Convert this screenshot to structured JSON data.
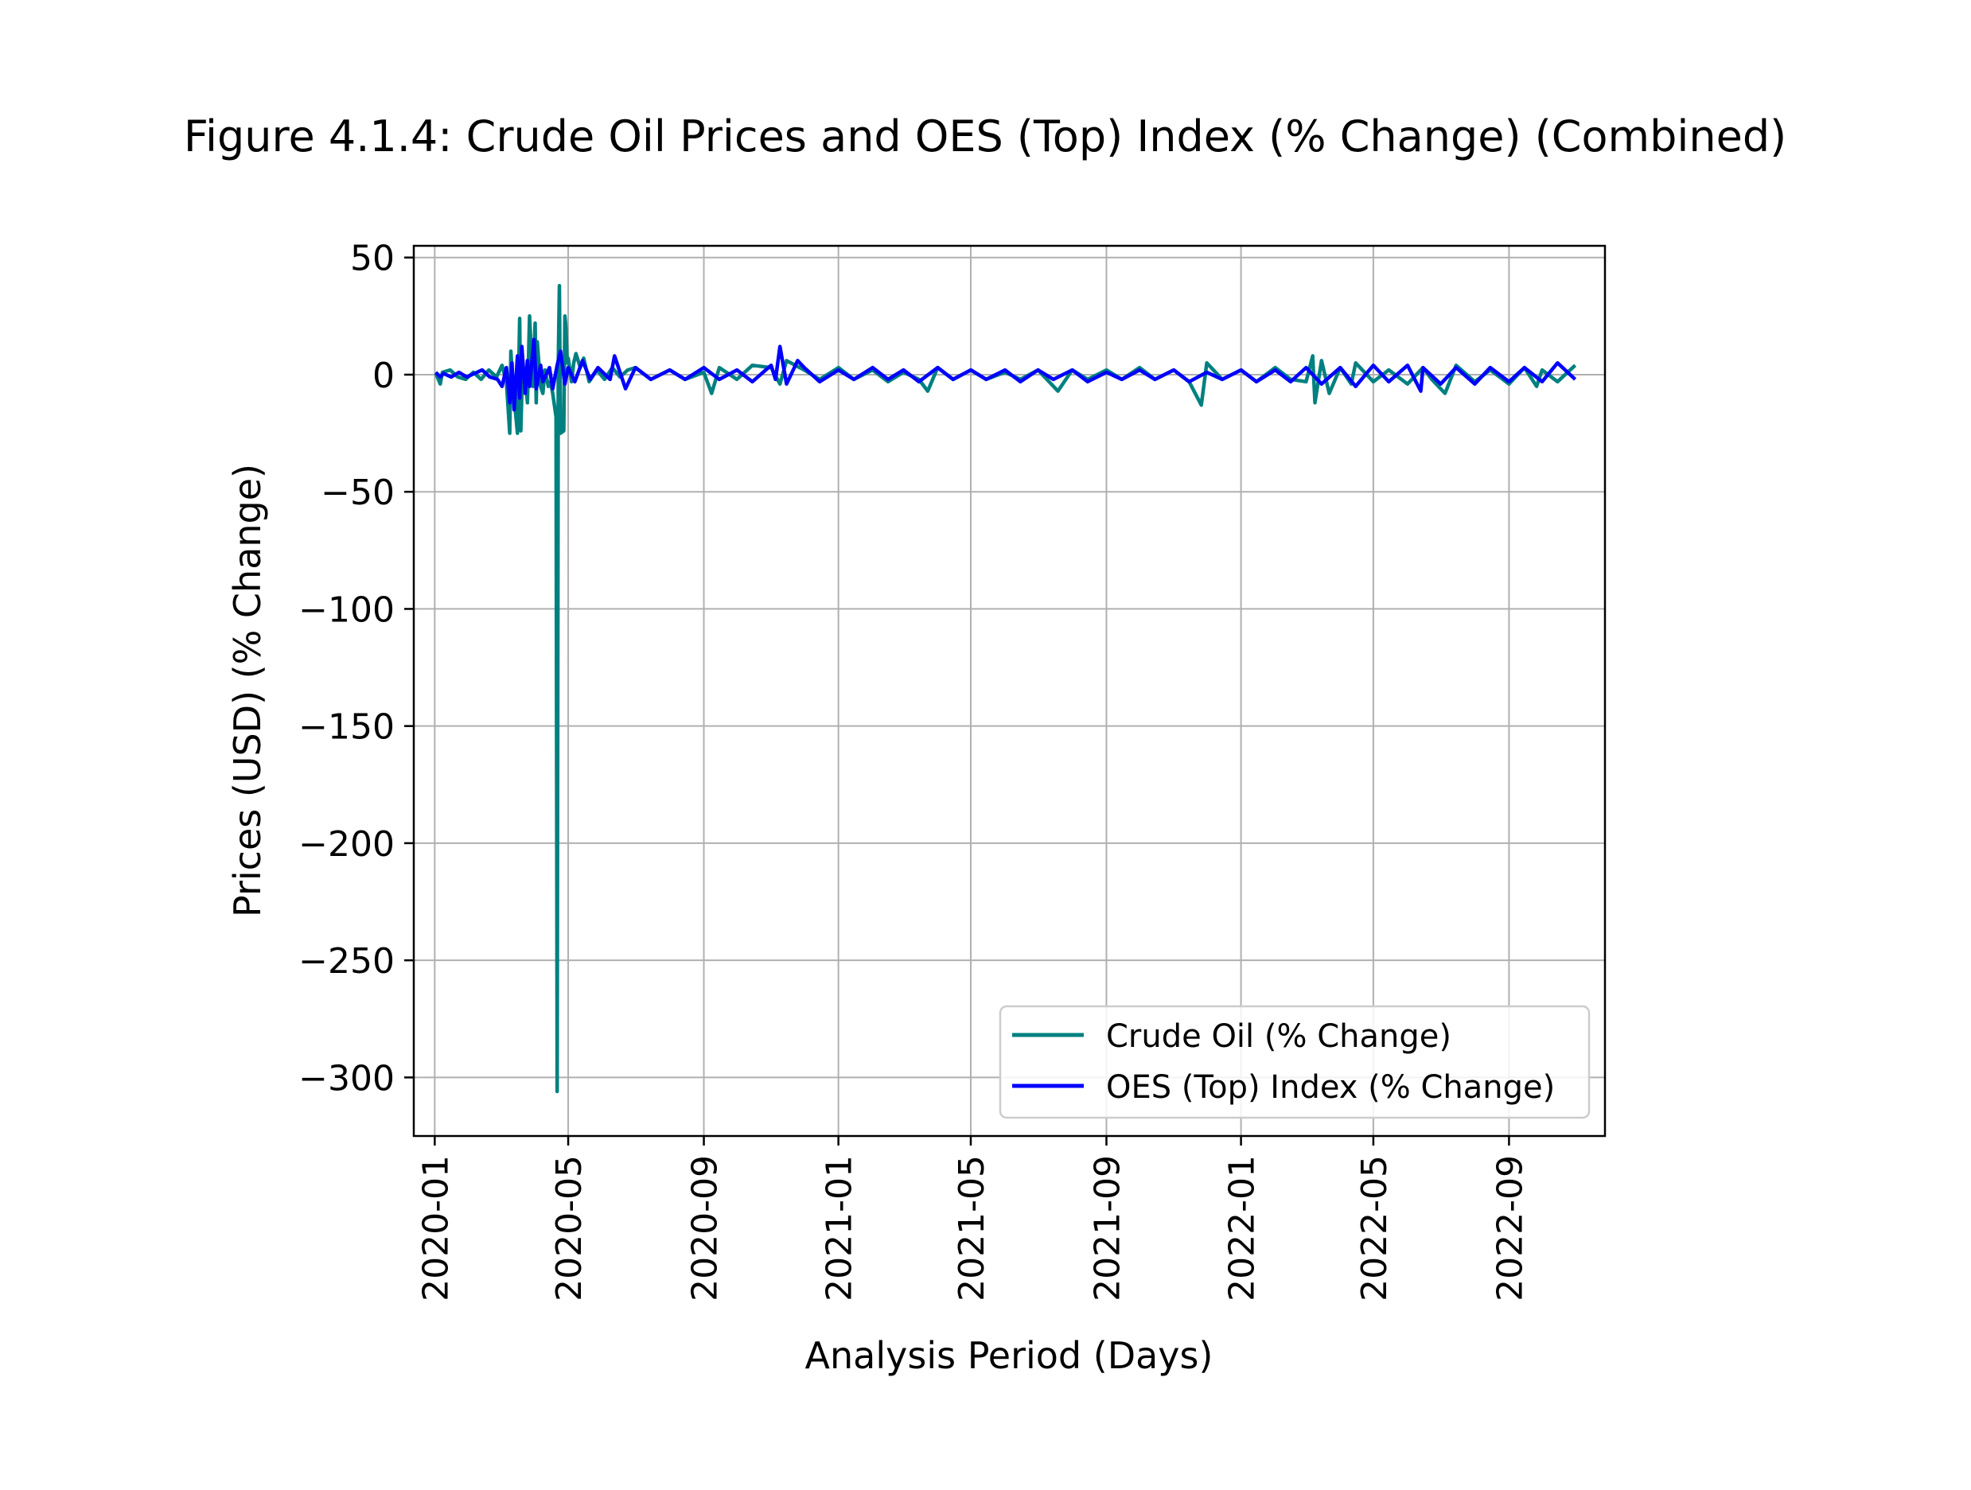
{
  "chart_data": {
    "type": "line",
    "title": "Figure 4.1.4: Crude Oil Prices and OES (Top) Index (% Change) (Combined)",
    "xlabel": "Analysis Period (Days)",
    "ylabel": "Prices (USD) (% Change)",
    "x_range": [
      "2019-12-13",
      "2022-11-27"
    ],
    "ylim": [
      -325,
      55
    ],
    "x_ticks": [
      "2020-01",
      "2020-05",
      "2020-09",
      "2021-01",
      "2021-05",
      "2021-09",
      "2022-01",
      "2022-05",
      "2022-09"
    ],
    "y_ticks": [
      50,
      0,
      -50,
      -100,
      -150,
      -200,
      -250,
      -300
    ],
    "y_tick_labels": [
      "50",
      "0",
      "−50",
      "−100",
      "−150",
      "−200",
      "−250",
      "−300"
    ],
    "grid": true,
    "legend": "lower right",
    "series": [
      {
        "name": "Crude Oil (% Change)",
        "color": "#008080",
        "x": [
          "2020-01-02",
          "2020-01-06",
          "2020-01-08",
          "2020-01-15",
          "2020-01-22",
          "2020-01-29",
          "2020-02-05",
          "2020-02-12",
          "2020-02-19",
          "2020-02-26",
          "2020-03-02",
          "2020-03-06",
          "2020-03-09",
          "2020-03-10",
          "2020-03-12",
          "2020-03-16",
          "2020-03-18",
          "2020-03-19",
          "2020-03-20",
          "2020-03-23",
          "2020-03-25",
          "2020-03-27",
          "2020-03-30",
          "2020-04-01",
          "2020-04-02",
          "2020-04-03",
          "2020-04-06",
          "2020-04-08",
          "2020-04-10",
          "2020-04-13",
          "2020-04-15",
          "2020-04-17",
          "2020-04-20",
          "2020-04-21",
          "2020-04-22",
          "2020-04-23",
          "2020-04-24",
          "2020-04-27",
          "2020-04-28",
          "2020-04-29",
          "2020-04-30",
          "2020-05-01",
          "2020-05-04",
          "2020-05-06",
          "2020-05-08",
          "2020-05-12",
          "2020-05-15",
          "2020-05-20",
          "2020-05-27",
          "2020-06-03",
          "2020-06-10",
          "2020-06-17",
          "2020-06-24",
          "2020-07-01",
          "2020-07-15",
          "2020-08-01",
          "2020-08-15",
          "2020-09-01",
          "2020-09-08",
          "2020-09-15",
          "2020-10-01",
          "2020-10-15",
          "2020-11-01",
          "2020-11-09",
          "2020-11-15",
          "2020-12-01",
          "2020-12-15",
          "2021-01-01",
          "2021-01-15",
          "2021-02-01",
          "2021-02-15",
          "2021-03-01",
          "2021-03-15",
          "2021-03-23",
          "2021-04-01",
          "2021-04-15",
          "2021-05-01",
          "2021-05-15",
          "2021-06-01",
          "2021-06-15",
          "2021-07-01",
          "2021-07-19",
          "2021-08-01",
          "2021-08-15",
          "2021-09-01",
          "2021-09-15",
          "2021-10-01",
          "2021-10-15",
          "2021-11-01",
          "2021-11-15",
          "2021-11-26",
          "2021-12-01",
          "2021-12-15",
          "2022-01-01",
          "2022-01-15",
          "2022-02-01",
          "2022-02-15",
          "2022-03-01",
          "2022-03-07",
          "2022-03-09",
          "2022-03-15",
          "2022-03-22",
          "2022-04-01",
          "2022-04-11",
          "2022-04-15",
          "2022-05-01",
          "2022-05-15",
          "2022-06-01",
          "2022-06-15",
          "2022-06-23",
          "2022-07-05",
          "2022-07-15",
          "2022-08-01",
          "2022-08-15",
          "2022-09-01",
          "2022-09-15",
          "2022-09-26",
          "2022-10-01",
          "2022-10-15",
          "2022-10-31"
        ],
        "values": [
          0.5,
          -4,
          1,
          2,
          -1,
          -2,
          1,
          -2,
          2,
          -1,
          4,
          -3,
          -25,
          10,
          -5,
          -25,
          24,
          -24,
          -8,
          2,
          -12,
          25,
          -5,
          22,
          -12,
          14,
          -5,
          -8,
          2,
          -5,
          -3,
          -8,
          -18,
          -306,
          5,
          38,
          -25,
          -24,
          25,
          20,
          5,
          7,
          -3,
          5,
          9,
          3,
          7,
          -3,
          2,
          -2,
          3,
          -1,
          2,
          3,
          -2,
          2,
          -2,
          1,
          -8,
          3,
          -2,
          4,
          3,
          -4,
          6,
          2,
          -2,
          3,
          -2,
          2,
          -3,
          1,
          -2,
          -7,
          3,
          -2,
          2,
          -2,
          1,
          -2,
          2,
          -7,
          2,
          -2,
          2,
          -2,
          3,
          -2,
          2,
          -3,
          -13,
          5,
          -2,
          2,
          -3,
          3,
          -2,
          -3,
          8,
          -12,
          6,
          -8,
          3,
          -4,
          5,
          -3,
          2,
          -4,
          3,
          -2,
          -8,
          4,
          -3,
          2,
          -4,
          3,
          -5,
          2,
          -3,
          4
        ]
      },
      {
        "name": "OES (Top) Index (% Change)",
        "color": "#0000ff",
        "x": [
          "2020-01-02",
          "2020-01-06",
          "2020-01-09",
          "2020-01-16",
          "2020-01-23",
          "2020-01-30",
          "2020-02-06",
          "2020-02-13",
          "2020-02-20",
          "2020-02-27",
          "2020-03-02",
          "2020-03-06",
          "2020-03-09",
          "2020-03-11",
          "2020-03-13",
          "2020-03-16",
          "2020-03-18",
          "2020-03-20",
          "2020-03-23",
          "2020-03-25",
          "2020-03-27",
          "2020-03-31",
          "2020-04-02",
          "2020-04-06",
          "2020-04-08",
          "2020-04-14",
          "2020-04-17",
          "2020-04-21",
          "2020-04-24",
          "2020-04-28",
          "2020-05-01",
          "2020-05-07",
          "2020-05-14",
          "2020-05-21",
          "2020-05-28",
          "2020-06-08",
          "2020-06-12",
          "2020-06-22",
          "2020-07-01",
          "2020-07-15",
          "2020-08-01",
          "2020-08-15",
          "2020-09-01",
          "2020-09-15",
          "2020-10-01",
          "2020-10-15",
          "2020-11-01",
          "2020-11-05",
          "2020-11-09",
          "2020-11-15",
          "2020-11-25",
          "2020-12-01",
          "2020-12-15",
          "2021-01-01",
          "2021-01-15",
          "2021-02-01",
          "2021-02-15",
          "2021-03-01",
          "2021-03-15",
          "2021-04-01",
          "2021-04-15",
          "2021-05-01",
          "2021-05-15",
          "2021-06-01",
          "2021-06-15",
          "2021-07-01",
          "2021-07-15",
          "2021-08-01",
          "2021-08-15",
          "2021-09-01",
          "2021-09-15",
          "2021-10-01",
          "2021-10-15",
          "2021-11-01",
          "2021-11-15",
          "2021-12-01",
          "2021-12-15",
          "2022-01-01",
          "2022-01-15",
          "2022-02-01",
          "2022-02-15",
          "2022-03-01",
          "2022-03-15",
          "2022-04-01",
          "2022-04-15",
          "2022-05-01",
          "2022-05-15",
          "2022-06-01",
          "2022-06-13",
          "2022-06-15",
          "2022-07-01",
          "2022-07-15",
          "2022-08-01",
          "2022-08-15",
          "2022-09-01",
          "2022-09-15",
          "2022-10-01",
          "2022-10-15",
          "2022-10-31"
        ],
        "values": [
          1,
          -1,
          0.5,
          -1,
          1,
          -1,
          0.5,
          2,
          -1,
          -2,
          -5,
          3,
          -12,
          5,
          -15,
          8,
          -10,
          12,
          -8,
          6,
          -5,
          15,
          -6,
          4,
          -3,
          3,
          -6,
          4,
          10,
          -4,
          3,
          -3,
          6,
          -2,
          3,
          -2,
          8,
          -6,
          3,
          -2,
          2,
          -2,
          3,
          -2,
          2,
          -3,
          4,
          -2,
          12,
          -4,
          6,
          3,
          -3,
          2,
          -2,
          3,
          -2,
          2,
          -3,
          3,
          -2,
          2,
          -2,
          2,
          -3,
          2,
          -2,
          2,
          -3,
          1,
          -2,
          2,
          -2,
          2,
          -3,
          1,
          -2,
          2,
          -3,
          2,
          -3,
          3,
          -4,
          3,
          -5,
          4,
          -3,
          4,
          -7,
          3,
          -4,
          3,
          -4,
          3,
          -3,
          3,
          -3,
          5,
          -2
        ]
      }
    ]
  }
}
